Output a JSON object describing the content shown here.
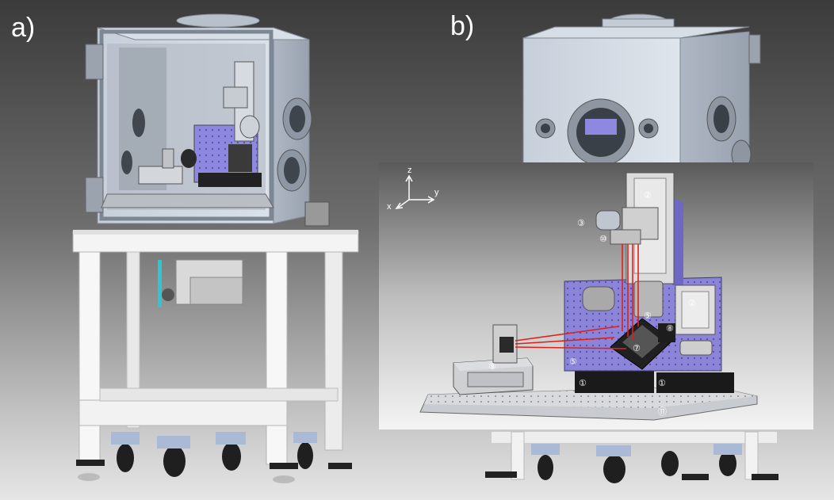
{
  "panels": {
    "a_label": "a)",
    "b_label": "b)"
  },
  "axes": {
    "z": "z",
    "y": "y",
    "x": "x"
  },
  "callouts": {
    "c1": "①",
    "c2": "②",
    "c3": "③",
    "c5": "⑤",
    "c7": "⑦",
    "c8": "⑧",
    "c9": "⑨",
    "c10": "⑩",
    "c11": "⑪"
  },
  "colors": {
    "chamber": "#c9d1dc",
    "frame": "#f2f2f2",
    "breadboard_plate": "#8b84d8",
    "laser_beam": "#e0201a",
    "stage": "#d6d6d6"
  }
}
